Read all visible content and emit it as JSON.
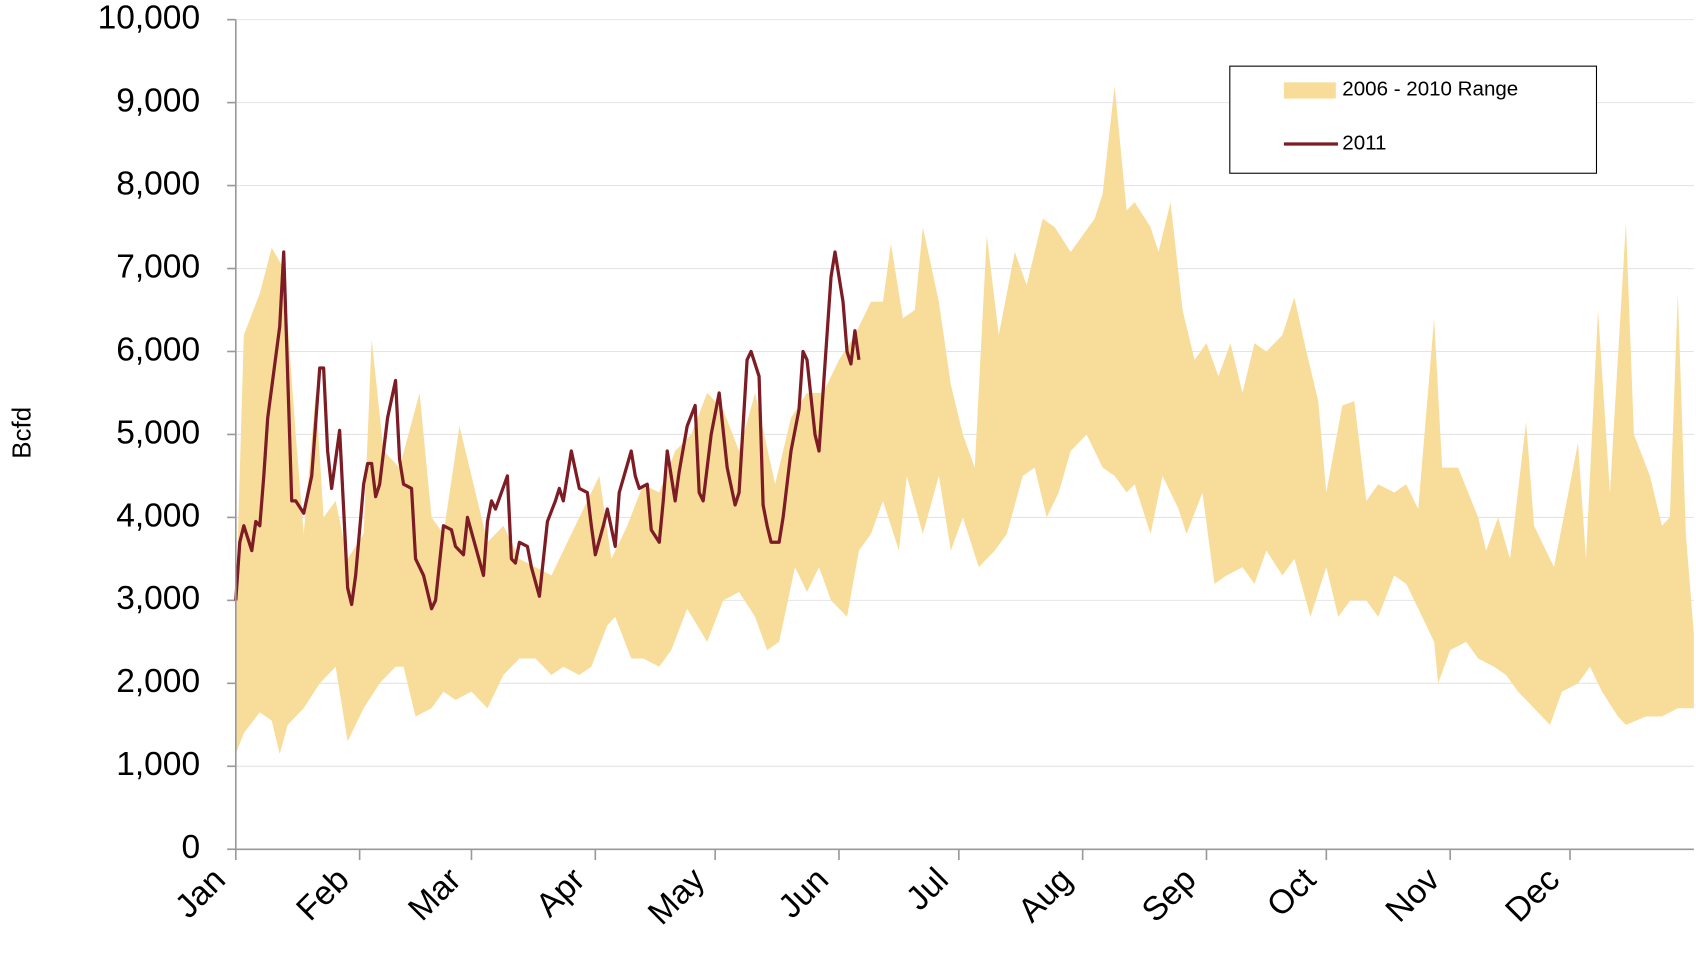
{
  "chart_data": {
    "type": "line",
    "ylabel": "Bcfd",
    "xlim": [
      1,
      366
    ],
    "ylim": [
      0,
      10000
    ],
    "grid": true,
    "legend": "upper right",
    "yticks": [
      0,
      {
        "value": 1000,
        "label": "1,000"
      },
      {
        "value": 2000,
        "label": "2,000"
      },
      {
        "value": 3000,
        "label": "3,000"
      },
      {
        "value": 4000,
        "label": "4,000"
      },
      {
        "value": 5000,
        "label": "5,000"
      },
      {
        "value": 6000,
        "label": "6,000"
      },
      {
        "value": 7000,
        "label": "7,000"
      },
      {
        "value": 8000,
        "label": "8,000"
      },
      {
        "value": 9000,
        "label": "9,000"
      },
      {
        "value": 10000,
        "label": "10,000"
      }
    ],
    "xticks": [
      {
        "value": 1,
        "label": "Jan"
      },
      {
        "value": 32,
        "label": "Feb"
      },
      {
        "value": 60,
        "label": "Mar"
      },
      {
        "value": 91,
        "label": "Apr"
      },
      {
        "value": 121,
        "label": "May"
      },
      {
        "value": 152,
        "label": "Jun"
      },
      {
        "value": 182,
        "label": "Jul"
      },
      {
        "value": 213,
        "label": "Aug"
      },
      {
        "value": 244,
        "label": "Sep"
      },
      {
        "value": 274,
        "label": "Oct"
      },
      {
        "value": 305,
        "label": "Nov"
      },
      {
        "value": 335,
        "label": "Dec"
      }
    ],
    "series": [
      {
        "name": "2006 - 2010 Range",
        "type": "band",
        "color": "#f8dd9a",
        "upper": {
          "x": [
            1,
            3,
            7,
            10,
            13,
            16,
            18,
            21,
            23,
            26,
            29,
            33,
            35,
            38,
            42,
            47,
            50,
            53,
            57,
            61,
            64,
            68,
            72,
            76,
            80,
            83,
            88,
            92,
            95,
            99,
            103,
            107,
            111,
            115,
            119,
            123,
            127,
            131,
            136,
            140,
            144,
            148,
            152,
            156,
            160,
            163,
            165,
            168,
            171,
            173,
            177,
            180,
            183,
            186,
            189,
            192,
            196,
            199,
            203,
            206,
            210,
            213,
            216,
            218,
            221,
            224,
            226,
            230,
            232,
            235,
            238,
            241,
            244,
            247,
            250,
            253,
            256,
            259,
            263,
            266,
            269,
            272,
            274,
            278,
            281,
            284,
            287,
            291,
            294,
            297,
            301,
            303,
            307,
            312,
            314,
            317,
            320,
            324,
            326,
            331,
            333,
            337,
            339,
            342,
            345,
            349,
            351,
            355,
            358,
            360,
            362,
            364,
            366
          ],
          "values": [
            2900,
            6200,
            6700,
            7250,
            7000,
            5000,
            3800,
            5500,
            4000,
            4200,
            3500,
            3800,
            6150,
            4800,
            4600,
            5500,
            4000,
            3800,
            5100,
            4300,
            3700,
            3900,
            3500,
            3400,
            3300,
            3600,
            4100,
            4500,
            3500,
            3900,
            4400,
            4300,
            4800,
            5000,
            5500,
            5300,
            4800,
            5500,
            4400,
            5200,
            5500,
            5500,
            5900,
            6200,
            6600,
            6600,
            7300,
            6400,
            6500,
            7500,
            6600,
            5600,
            5000,
            4600,
            7400,
            6200,
            7200,
            6800,
            7600,
            7500,
            7200,
            7400,
            7600,
            7900,
            9200,
            7700,
            7800,
            7500,
            7200,
            7800,
            6500,
            5900,
            6100,
            5700,
            6100,
            5500,
            6100,
            6000,
            6200,
            6650,
            6000,
            5400,
            4300,
            5350,
            5400,
            4200,
            4400,
            4300,
            4400,
            4100,
            6400,
            4600,
            4600,
            4000,
            3600,
            4000,
            3500,
            5150,
            3900,
            3400,
            3900,
            4900,
            3500,
            6500,
            4300,
            7550,
            5000,
            4500,
            3900,
            4000,
            6700,
            3800,
            2600
          ]
        },
        "lower": {
          "x": [
            1,
            3,
            7,
            10,
            12,
            14,
            18,
            22,
            26,
            29,
            33,
            37,
            41,
            43,
            46,
            50,
            53,
            56,
            60,
            64,
            68,
            72,
            76,
            80,
            83,
            87,
            90,
            94,
            96,
            100,
            103,
            107,
            110,
            114,
            119,
            123,
            127,
            131,
            134,
            137,
            141,
            144,
            147,
            150,
            154,
            157,
            160,
            163,
            167,
            169,
            173,
            177,
            180,
            183,
            187,
            191,
            194,
            198,
            201,
            204,
            207,
            210,
            214,
            218,
            221,
            224,
            226,
            230,
            233,
            237,
            239,
            243,
            246,
            249,
            253,
            256,
            259,
            263,
            266,
            270,
            274,
            277,
            280,
            284,
            287,
            291,
            294,
            298,
            301,
            302,
            305,
            309,
            312,
            316,
            319,
            322,
            326,
            330,
            333,
            337,
            340,
            343,
            347,
            349,
            354,
            358,
            362,
            366
          ],
          "values": [
            1150,
            1400,
            1650,
            1550,
            1150,
            1500,
            1700,
            2000,
            2200,
            1300,
            1700,
            2000,
            2200,
            2200,
            1600,
            1700,
            1900,
            1800,
            1900,
            1700,
            2100,
            2300,
            2300,
            2100,
            2200,
            2100,
            2200,
            2700,
            2800,
            2300,
            2300,
            2200,
            2400,
            2900,
            2500,
            3000,
            3100,
            2800,
            2400,
            2500,
            3400,
            3100,
            3400,
            3000,
            2800,
            3600,
            3800,
            4200,
            3600,
            4500,
            3800,
            4500,
            3600,
            4000,
            3400,
            3600,
            3800,
            4500,
            4600,
            4000,
            4300,
            4800,
            5000,
            4600,
            4500,
            4300,
            4400,
            3800,
            4500,
            4100,
            3800,
            4300,
            3200,
            3300,
            3400,
            3200,
            3600,
            3300,
            3500,
            2800,
            3400,
            2800,
            3000,
            3000,
            2800,
            3300,
            3200,
            2800,
            2500,
            2000,
            2400,
            2500,
            2300,
            2200,
            2100,
            1900,
            1700,
            1500,
            1900,
            2000,
            2200,
            1900,
            1600,
            1500,
            1600,
            1600,
            1700,
            1700
          ]
        }
      },
      {
        "name": "2011",
        "type": "line",
        "color": "#7d1c24",
        "x": [
          1,
          2,
          3,
          5,
          6,
          7,
          8,
          9,
          12,
          13,
          15,
          16,
          18,
          20,
          22,
          23,
          24,
          25,
          27,
          29,
          30,
          31,
          33,
          34,
          35,
          36,
          37,
          39,
          41,
          42,
          43,
          45,
          46,
          48,
          50,
          51,
          53,
          55,
          56,
          58,
          59,
          61,
          63,
          64,
          65,
          66,
          69,
          70,
          71,
          72,
          74,
          75,
          77,
          79,
          81,
          82,
          83,
          85,
          87,
          89,
          90,
          91,
          93,
          94,
          96,
          97,
          100,
          101,
          102,
          104,
          105,
          107,
          108,
          109,
          111,
          112,
          114,
          116,
          117,
          118,
          120,
          122,
          124,
          126,
          127,
          129,
          130,
          132,
          133,
          134,
          135,
          137,
          138,
          140,
          142,
          143,
          144,
          146,
          147,
          148,
          150,
          151,
          153,
          154,
          155,
          156,
          157
        ],
        "values": [
          3000,
          3700,
          3900,
          3600,
          3950,
          3900,
          4500,
          5200,
          6300,
          7200,
          4200,
          4200,
          4050,
          4500,
          5800,
          5800,
          4800,
          4350,
          5050,
          3150,
          2950,
          3300,
          4400,
          4650,
          4650,
          4250,
          4400,
          5200,
          5650,
          4700,
          4400,
          4350,
          3500,
          3300,
          2900,
          3000,
          3900,
          3850,
          3650,
          3550,
          4000,
          3650,
          3300,
          3950,
          4200,
          4100,
          4500,
          3500,
          3450,
          3700,
          3650,
          3400,
          3050,
          3950,
          4200,
          4350,
          4200,
          4800,
          4350,
          4300,
          3900,
          3550,
          3900,
          4100,
          3650,
          4300,
          4800,
          4500,
          4350,
          4400,
          3850,
          3700,
          4200,
          4800,
          4200,
          4550,
          5100,
          5350,
          4300,
          4200,
          5000,
          5500,
          4600,
          4150,
          4300,
          5900,
          6000,
          5700,
          4150,
          3900,
          3700,
          3700,
          4000,
          4800,
          5300,
          6000,
          5900,
          5000,
          4800,
          5500,
          6900,
          7200,
          6600,
          6000,
          5850,
          6250,
          5900
        ]
      }
    ]
  }
}
